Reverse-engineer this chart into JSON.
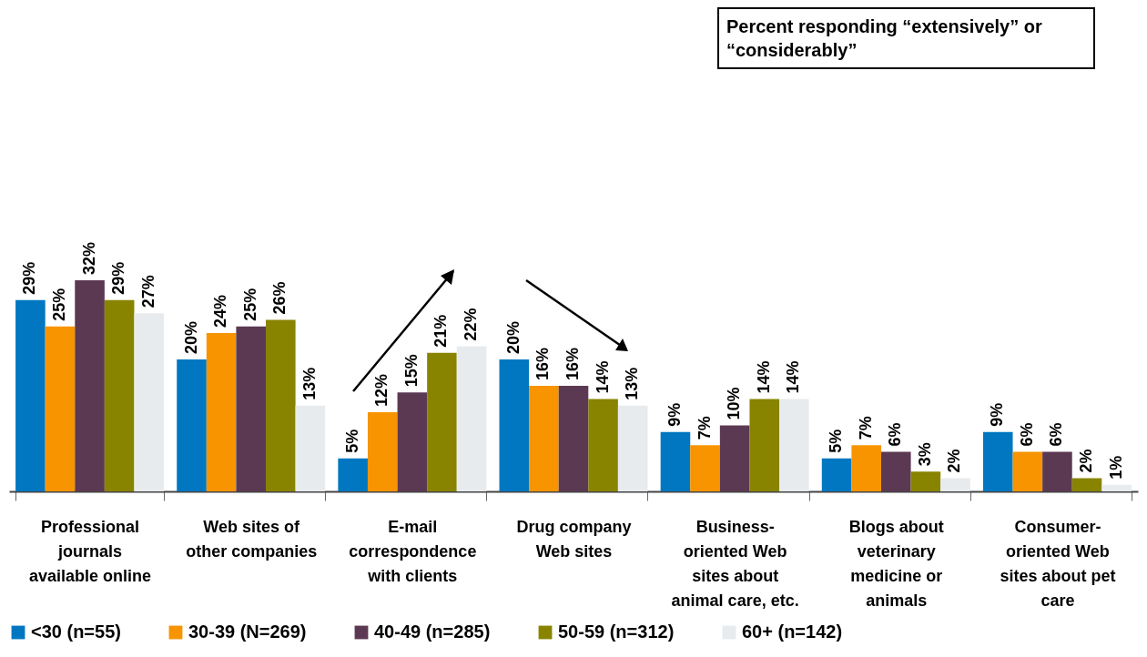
{
  "chart_data": {
    "type": "bar",
    "title": "Percent responding “extensively” or “considerably”",
    "categories": [
      "Professional journals available online",
      "Web sites of other companies",
      "E-mail correspondence with clients",
      "Drug company Web sites",
      "Business-oriented Web sites about animal care, etc.",
      "Blogs about veterinary medicine or animals",
      "Consumer-oriented Web sites about pet care"
    ],
    "series": [
      {
        "name": "<30 (n=55)",
        "color": "#0077c0",
        "values": [
          29,
          20,
          5,
          20,
          9,
          5,
          9
        ],
        "value_labels": [
          "29%",
          "20%",
          "5%",
          "20%",
          "9%",
          "5%",
          "9%"
        ]
      },
      {
        "name": "30-39 (N=269)",
        "color": "#f79400",
        "values": [
          25,
          24,
          12,
          16,
          7,
          7,
          6
        ],
        "value_labels": [
          "25%",
          "24%",
          "12%",
          "16%",
          "7%",
          "7%",
          "6%"
        ]
      },
      {
        "name": "40-49 (n=285)",
        "color": "#5c3953",
        "values": [
          32,
          25,
          15,
          16,
          10,
          6,
          6
        ],
        "value_labels": [
          "32%",
          "25%",
          "15%",
          "16%",
          "10%",
          "6%",
          "6%"
        ]
      },
      {
        "name": "50-59 (n=312)",
        "color": "#888400",
        "values": [
          29,
          26,
          21,
          14,
          14,
          3,
          2
        ],
        "value_labels": [
          "29%",
          "26%",
          "21%",
          "14%",
          "14%",
          "3%",
          "2%"
        ]
      },
      {
        "name": "60+ (n=142)",
        "color": "#e8ebee",
        "values": [
          27,
          13,
          22,
          13,
          14,
          2,
          1
        ],
        "value_labels": [
          "27%",
          "13%",
          "22%",
          "13%",
          "14%",
          "2%",
          "1%"
        ]
      }
    ],
    "legend": "bottom",
    "grid": false
  }
}
